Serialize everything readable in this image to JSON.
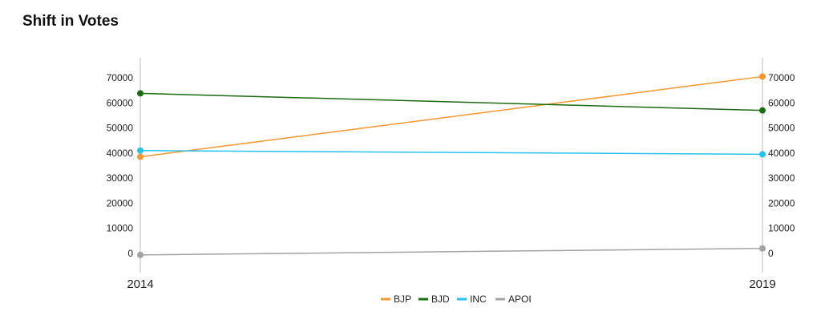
{
  "title": "Shift in Votes",
  "colors": {
    "BJP": "#f7962e",
    "BJD": "#1b6b12",
    "INC": "#27c1f0",
    "APOI": "#a3a3a3",
    "axis": "#bbbbbb"
  },
  "chart_data": {
    "type": "line",
    "title": "Shift in Votes",
    "xlabel": "",
    "ylabel": "",
    "categories": [
      "2014",
      "2019"
    ],
    "ylim": [
      0,
      70000
    ],
    "yticks": [
      "70000",
      "60000",
      "50000",
      "40000",
      "30000",
      "20000",
      "10000",
      "0"
    ],
    "dual_y_axis": true,
    "grid": false,
    "legend_position": "bottom",
    "series": [
      {
        "name": "BJP",
        "values": [
          38500,
          70500
        ]
      },
      {
        "name": "BJD",
        "values": [
          63800,
          57000
        ]
      },
      {
        "name": "INC",
        "values": [
          41000,
          39500
        ]
      },
      {
        "name": "APOI",
        "values": [
          -600,
          2000
        ]
      }
    ]
  }
}
